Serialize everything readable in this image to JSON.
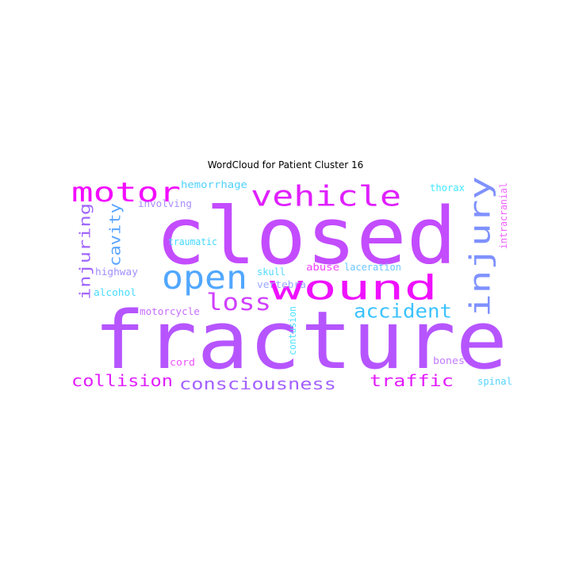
{
  "title": "WordCloud for Patient Cluster 16",
  "words": [
    {
      "text": "closed",
      "color": "#c34cff"
    },
    {
      "text": "fracture",
      "color": "#b655ff"
    },
    {
      "text": "open",
      "color": "#51a7ff"
    },
    {
      "text": "wound",
      "color": "#ef10ff"
    },
    {
      "text": "injury",
      "color": "#7f91ff"
    },
    {
      "text": "vehicle",
      "color": "#e01fff"
    },
    {
      "text": "motor",
      "color": "#f30cff"
    },
    {
      "text": "loss",
      "color": "#d03fff"
    },
    {
      "text": "accident",
      "color": "#3cc3ff"
    },
    {
      "text": "injuring",
      "color": "#a266ff"
    },
    {
      "text": "cavity",
      "color": "#5aa5ff"
    },
    {
      "text": "collision",
      "color": "#e21dff"
    },
    {
      "text": "consciousness",
      "color": "#a462ff"
    },
    {
      "text": "traffic",
      "color": "#e41bff"
    },
    {
      "text": "hemorrhage",
      "color": "#4fd1ff"
    },
    {
      "text": "involving",
      "color": "#a98bff"
    },
    {
      "text": "thorax",
      "color": "#3ee8ff"
    },
    {
      "text": "intracranial",
      "color": "#ef63ff"
    },
    {
      "text": "traumatic",
      "color": "#43d7ff"
    },
    {
      "text": "highway",
      "color": "#9f8fff"
    },
    {
      "text": "skull",
      "color": "#4fd9ff"
    },
    {
      "text": "abuse",
      "color": "#f240ff"
    },
    {
      "text": "laceration",
      "color": "#6bc5ff"
    },
    {
      "text": "alcohol",
      "color": "#47dcff"
    },
    {
      "text": "vertebra",
      "color": "#9aa8ff"
    },
    {
      "text": "motorcycle",
      "color": "#c76dff"
    },
    {
      "text": "contusion",
      "color": "#4fe1ff"
    },
    {
      "text": "cord",
      "color": "#ef53ff"
    },
    {
      "text": "bones",
      "color": "#c17cff"
    },
    {
      "text": "spinal",
      "color": "#54d3ff"
    }
  ]
}
